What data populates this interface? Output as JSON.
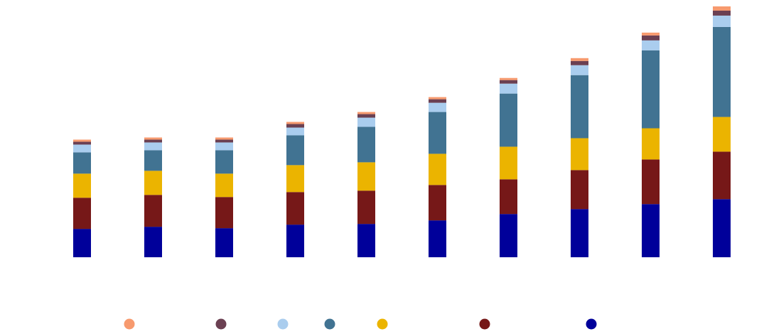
{
  "chart_data": {
    "type": "bar",
    "stacked": true,
    "title": "",
    "xlabel": "",
    "ylabel": "",
    "grid": false,
    "legend": "bottom",
    "categories": [
      "",
      "",
      "",
      "",
      "",
      "",
      "",
      "",
      "",
      ""
    ],
    "ylim": [
      0,
      355
    ],
    "series": [
      {
        "color": "#00009a",
        "values": [
          40,
          43,
          41,
          46,
          47,
          52,
          61,
          68,
          75,
          82
        ]
      },
      {
        "color": "#761818",
        "values": [
          44,
          45,
          44,
          46,
          47,
          50,
          49,
          55,
          63,
          67
        ]
      },
      {
        "color": "#ebb400",
        "values": [
          34,
          34,
          33,
          38,
          40,
          44,
          46,
          45,
          44,
          49
        ]
      },
      {
        "color": "#417392",
        "values": [
          30,
          29,
          33,
          42,
          50,
          59,
          75,
          89,
          110,
          127
        ]
      },
      {
        "color": "#aacdee",
        "values": [
          11,
          11,
          11,
          11,
          13,
          13,
          14,
          14,
          14,
          16
        ]
      },
      {
        "color": "#6b4052",
        "values": [
          4,
          4,
          4,
          5,
          5,
          5,
          5,
          6,
          7,
          7
        ]
      },
      {
        "color": "#f79a6e",
        "values": [
          3,
          3,
          3,
          3,
          3,
          3,
          3,
          4,
          4,
          6
        ]
      }
    ]
  },
  "legend_items": [
    {
      "color": "#f79a6e"
    },
    {
      "color": "#6b4052"
    },
    {
      "color": "#aacdee"
    },
    {
      "color": "#417392"
    },
    {
      "color": "#ebb400"
    },
    {
      "color": "#761818"
    },
    {
      "color": "#00009a"
    }
  ]
}
